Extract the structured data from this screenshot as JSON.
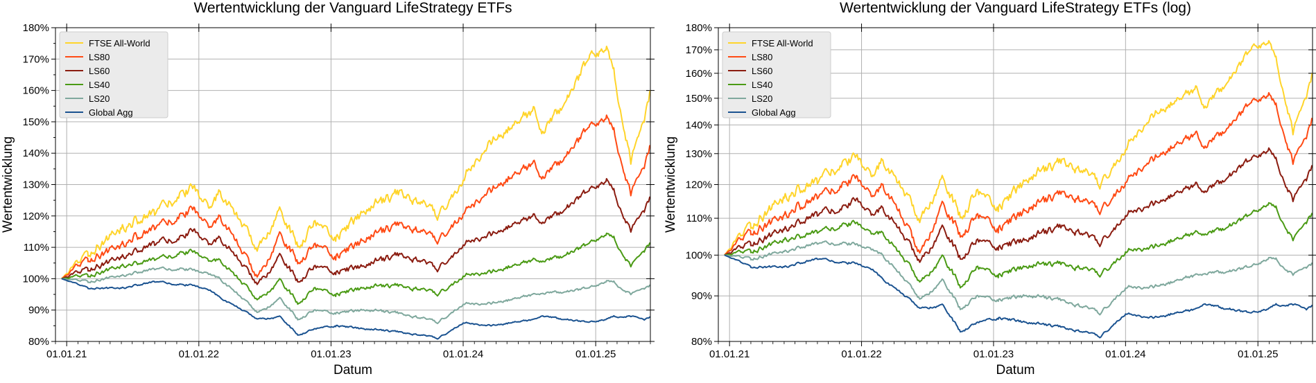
{
  "chart_data": [
    {
      "type": "line",
      "title": "Wertentwicklung der Vanguard LifeStrategy ETFs",
      "xlabel": "Datum",
      "ylabel": "Wertentwicklung",
      "scale": "linear",
      "xlim": [
        "2020-12-01",
        "2025-06-01"
      ],
      "ylim": [
        80,
        180
      ],
      "yticks": [
        "80%",
        "90%",
        "100%",
        "110%",
        "120%",
        "130%",
        "140%",
        "150%",
        "160%",
        "170%",
        "180%"
      ],
      "xticks": [
        "01.01.21",
        "01.01.22",
        "01.01.23",
        "01.01.24",
        "01.01.25"
      ],
      "grid": true,
      "legend_position": "top-left",
      "series": [
        {
          "name": "FTSE All-World",
          "color": "#ffd42a",
          "points": [
            [
              "2020-12-18",
              100
            ],
            [
              "2021-03-01",
              108
            ],
            [
              "2021-06-01",
              116
            ],
            [
              "2021-09-01",
              121
            ],
            [
              "2021-11-15",
              127
            ],
            [
              "2021-12-20",
              130
            ],
            [
              "2022-02-01",
              121
            ],
            [
              "2022-03-01",
              128
            ],
            [
              "2022-06-16",
              109
            ],
            [
              "2022-08-15",
              123
            ],
            [
              "2022-10-01",
              110
            ],
            [
              "2022-11-15",
              118
            ],
            [
              "2023-01-15",
              113
            ],
            [
              "2023-04-01",
              121
            ],
            [
              "2023-07-15",
              128
            ],
            [
              "2023-10-25",
              120
            ],
            [
              "2024-01-01",
              132
            ],
            [
              "2024-03-15",
              143
            ],
            [
              "2024-07-15",
              154
            ],
            [
              "2024-08-05",
              145
            ],
            [
              "2024-10-15",
              158
            ],
            [
              "2024-12-15",
              170
            ],
            [
              "2025-01-31",
              173
            ],
            [
              "2025-02-20",
              166
            ],
            [
              "2025-04-08",
              137
            ],
            [
              "2025-05-15",
              151
            ],
            [
              "2025-06-05",
              162
            ]
          ]
        },
        {
          "name": "LS80",
          "color": "#ff4a14",
          "points": [
            [
              "2020-12-18",
              100
            ],
            [
              "2021-03-01",
              106
            ],
            [
              "2021-06-01",
              111
            ],
            [
              "2021-09-01",
              116
            ],
            [
              "2021-11-15",
              120
            ],
            [
              "2021-12-20",
              123
            ],
            [
              "2022-02-01",
              115
            ],
            [
              "2022-03-01",
              120
            ],
            [
              "2022-06-16",
              100
            ],
            [
              "2022-08-15",
              115
            ],
            [
              "2022-10-01",
              105
            ],
            [
              "2022-11-15",
              111
            ],
            [
              "2023-01-15",
              107
            ],
            [
              "2023-04-01",
              112
            ],
            [
              "2023-07-15",
              118
            ],
            [
              "2023-10-25",
              112
            ],
            [
              "2024-01-01",
              121
            ],
            [
              "2024-03-15",
              128
            ],
            [
              "2024-07-15",
              137
            ],
            [
              "2024-08-05",
              131
            ],
            [
              "2024-10-15",
              140
            ],
            [
              "2024-12-15",
              148
            ],
            [
              "2025-01-31",
              151
            ],
            [
              "2025-02-20",
              147
            ],
            [
              "2025-04-08",
              127
            ],
            [
              "2025-05-15",
              136
            ],
            [
              "2025-06-05",
              144
            ]
          ]
        },
        {
          "name": "LS60",
          "color": "#8b1c10",
          "points": [
            [
              "2020-12-18",
              100
            ],
            [
              "2021-03-01",
              103
            ],
            [
              "2021-06-01",
              107
            ],
            [
              "2021-09-01",
              111
            ],
            [
              "2021-11-15",
              113
            ],
            [
              "2021-12-20",
              116
            ],
            [
              "2022-02-01",
              110
            ],
            [
              "2022-03-01",
              113
            ],
            [
              "2022-06-16",
              98
            ],
            [
              "2022-08-15",
              108
            ],
            [
              "2022-10-01",
              99
            ],
            [
              "2022-11-15",
              104
            ],
            [
              "2023-01-15",
              102
            ],
            [
              "2023-04-01",
              104
            ],
            [
              "2023-07-15",
              108
            ],
            [
              "2023-10-25",
              103
            ],
            [
              "2024-01-01",
              111
            ],
            [
              "2024-03-15",
              114
            ],
            [
              "2024-07-15",
              120
            ],
            [
              "2024-08-05",
              117
            ],
            [
              "2024-10-15",
              123
            ],
            [
              "2024-12-15",
              128
            ],
            [
              "2025-01-31",
              131
            ],
            [
              "2025-02-20",
              128
            ],
            [
              "2025-04-08",
              115
            ],
            [
              "2025-05-15",
              122
            ],
            [
              "2025-06-05",
              127
            ]
          ]
        },
        {
          "name": "LS40",
          "color": "#4a9a14",
          "points": [
            [
              "2020-12-18",
              100
            ],
            [
              "2021-03-01",
              101
            ],
            [
              "2021-06-01",
              104
            ],
            [
              "2021-09-01",
              106
            ],
            [
              "2021-11-15",
              108
            ],
            [
              "2021-12-20",
              109
            ],
            [
              "2022-02-01",
              105
            ],
            [
              "2022-03-01",
              106
            ],
            [
              "2022-06-16",
              93
            ],
            [
              "2022-08-15",
              100
            ],
            [
              "2022-10-01",
              92
            ],
            [
              "2022-11-15",
              97
            ],
            [
              "2023-01-15",
              95
            ],
            [
              "2023-04-01",
              97
            ],
            [
              "2023-07-15",
              98
            ],
            [
              "2023-10-25",
              95
            ],
            [
              "2024-01-01",
              101
            ],
            [
              "2024-03-15",
              102
            ],
            [
              "2024-07-15",
              106
            ],
            [
              "2024-08-05",
              105
            ],
            [
              "2024-10-15",
              108
            ],
            [
              "2024-12-15",
              111
            ],
            [
              "2025-01-31",
              114
            ],
            [
              "2025-02-20",
              113
            ],
            [
              "2025-04-08",
              104
            ],
            [
              "2025-05-15",
              109
            ],
            [
              "2025-06-05",
              112
            ]
          ]
        },
        {
          "name": "LS20",
          "color": "#7fa89d",
          "points": [
            [
              "2020-12-18",
              100
            ],
            [
              "2021-03-01",
              99
            ],
            [
              "2021-06-01",
              101
            ],
            [
              "2021-09-01",
              103
            ],
            [
              "2021-11-15",
              103
            ],
            [
              "2021-12-20",
              103
            ],
            [
              "2022-02-01",
              101
            ],
            [
              "2022-03-01",
              100
            ],
            [
              "2022-06-16",
              89
            ],
            [
              "2022-08-15",
              94
            ],
            [
              "2022-10-01",
              87
            ],
            [
              "2022-11-15",
              90
            ],
            [
              "2023-01-15",
              89
            ],
            [
              "2023-04-01",
              90
            ],
            [
              "2023-07-15",
              89
            ],
            [
              "2023-10-25",
              86
            ],
            [
              "2024-01-01",
              92
            ],
            [
              "2024-03-15",
              92
            ],
            [
              "2024-07-15",
              95
            ],
            [
              "2024-08-05",
              95
            ],
            [
              "2024-10-15",
              96
            ],
            [
              "2024-12-15",
              97
            ],
            [
              "2025-01-31",
              99
            ],
            [
              "2025-02-20",
              99
            ],
            [
              "2025-04-08",
              95
            ],
            [
              "2025-05-15",
              97
            ],
            [
              "2025-06-05",
              98
            ]
          ]
        },
        {
          "name": "Global Agg",
          "color": "#1a5290",
          "points": [
            [
              "2020-12-18",
              100
            ],
            [
              "2021-03-01",
              97
            ],
            [
              "2021-06-01",
              97
            ],
            [
              "2021-09-01",
              99
            ],
            [
              "2021-11-15",
              98
            ],
            [
              "2021-12-20",
              98
            ],
            [
              "2022-02-01",
              96
            ],
            [
              "2022-03-01",
              94
            ],
            [
              "2022-06-16",
              87
            ],
            [
              "2022-08-15",
              88
            ],
            [
              "2022-10-01",
              82
            ],
            [
              "2022-11-15",
              84
            ],
            [
              "2023-01-15",
              85
            ],
            [
              "2023-04-01",
              84
            ],
            [
              "2023-07-15",
              83
            ],
            [
              "2023-10-25",
              81
            ],
            [
              "2024-01-01",
              86
            ],
            [
              "2024-03-15",
              85
            ],
            [
              "2024-07-15",
              87
            ],
            [
              "2024-08-05",
              88
            ],
            [
              "2024-10-15",
              87
            ],
            [
              "2024-12-15",
              86
            ],
            [
              "2025-01-31",
              87
            ],
            [
              "2025-02-20",
              88
            ],
            [
              "2025-04-08",
              88
            ],
            [
              "2025-05-15",
              87
            ],
            [
              "2025-06-05",
              88
            ]
          ]
        }
      ]
    },
    {
      "type": "line",
      "title": "Wertentwicklung der Vanguard LifeStrategy ETFs (log)",
      "xlabel": "Datum",
      "ylabel": "Wertentwicklung",
      "scale": "log",
      "xlim": [
        "2020-12-01",
        "2025-06-01"
      ],
      "ylim": [
        80,
        180
      ],
      "yticks": [
        "80%",
        "90%",
        "100%",
        "110%",
        "120%",
        "130%",
        "140%",
        "150%",
        "160%",
        "170%",
        "180%"
      ],
      "xticks": [
        "01.01.21",
        "01.01.22",
        "01.01.23",
        "01.01.24",
        "01.01.25"
      ],
      "grid": true,
      "legend_position": "top-left",
      "same_series_as_chart": 0
    }
  ]
}
